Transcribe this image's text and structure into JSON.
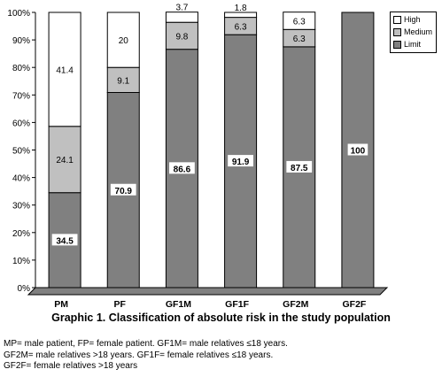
{
  "chart_data": {
    "type": "bar",
    "stacked": true,
    "categories": [
      "PM",
      "PF",
      "GF1M",
      "GF1F",
      "GF2M",
      "GF2F"
    ],
    "series": [
      {
        "name": "Limit",
        "color": "#808080",
        "values": [
          34.5,
          70.9,
          86.6,
          91.9,
          87.5,
          100
        ]
      },
      {
        "name": "Medium",
        "color": "#c0c0c0",
        "values": [
          24.1,
          9.1,
          9.8,
          6.3,
          6.3,
          0
        ]
      },
      {
        "name": "High",
        "color": "#ffffff",
        "values": [
          41.4,
          20,
          3.7,
          1.8,
          6.3,
          0
        ]
      }
    ],
    "data_labels": {
      "Limit": [
        "34.5",
        "70.9",
        "86.6",
        "91.9",
        "87.5",
        "100"
      ],
      "Medium": [
        "24.1",
        "9.1",
        "9.8",
        "6.3",
        "6.3",
        ""
      ],
      "High": [
        "41.4",
        "20",
        "3.7",
        "1.8",
        "6.3",
        ""
      ]
    },
    "yticks": [
      "0%",
      "10%",
      "20%",
      "30%",
      "40%",
      "50%",
      "60%",
      "70%",
      "80%",
      "90%",
      "100%"
    ],
    "ylim": [
      0,
      100
    ],
    "three_d": true,
    "legend_position": "top-right",
    "grid": false,
    "title": "Graphic 1. Classification of absolute risk in the study population"
  },
  "footnotes": [
    "MP= male patient, FP= female patient. GF1M= male relatives ≤18 years.",
    "GF2M= male relatives >18 years. GF1F= female relatives ≤18 years.",
    "GF2F= female relatives >18 years"
  ]
}
